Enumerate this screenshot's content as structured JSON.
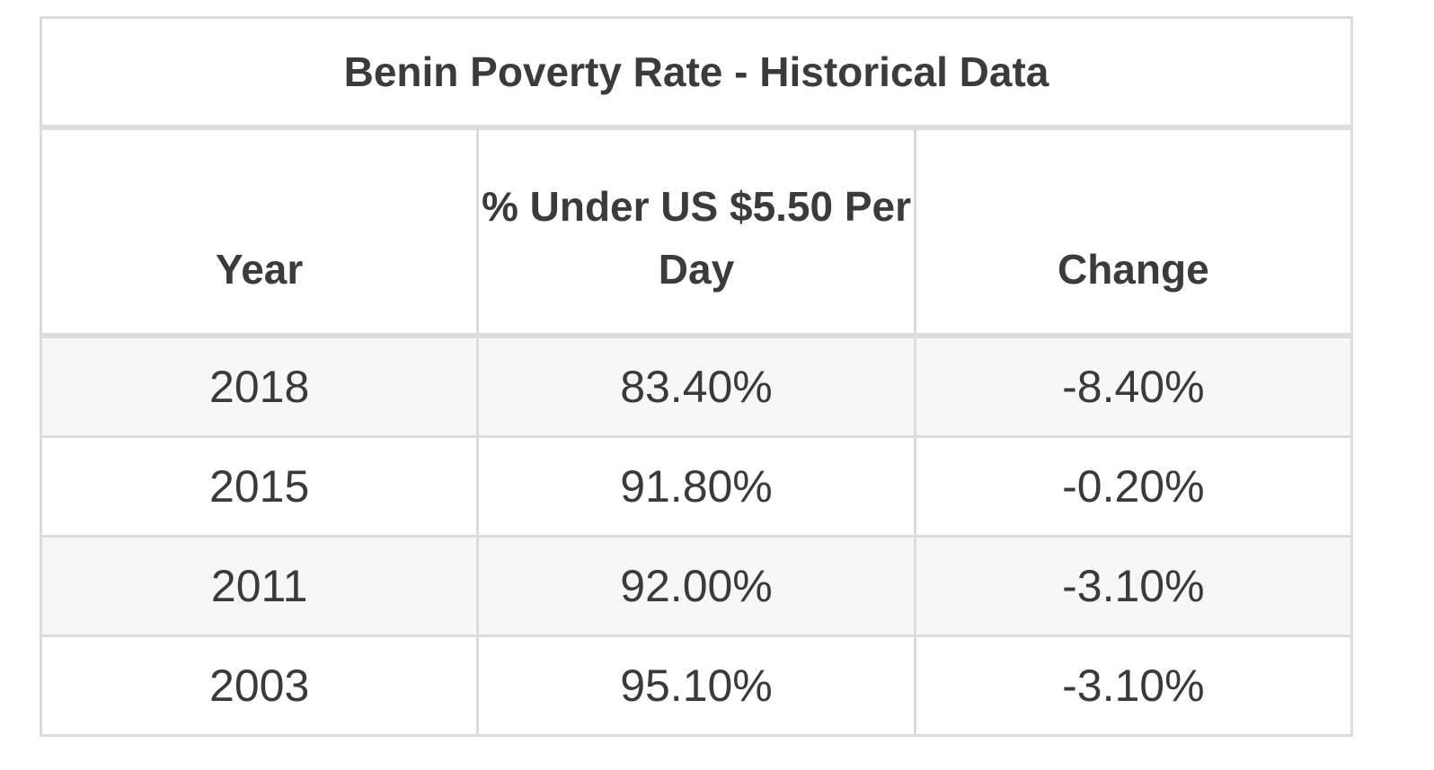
{
  "table": {
    "title": "Benin Poverty Rate - Historical Data",
    "headers": [
      "Year",
      "% Under US $5.50 Per Day",
      "Change"
    ],
    "rows": [
      [
        "2018",
        "83.40%",
        "-8.40%"
      ],
      [
        "2015",
        "91.80%",
        "-0.20%"
      ],
      [
        "2011",
        "92.00%",
        "-3.10%"
      ],
      [
        "2003",
        "95.10%",
        "-3.10%"
      ]
    ]
  }
}
